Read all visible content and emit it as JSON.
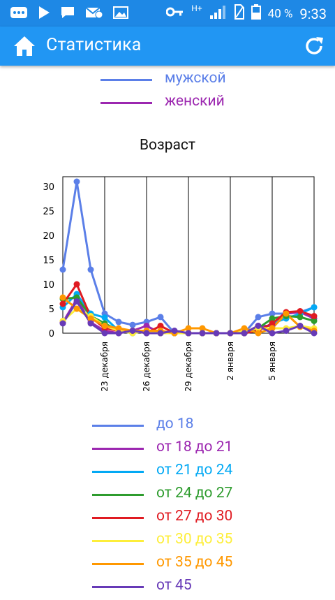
{
  "status_bar": {
    "battery": "40 %",
    "time": "9:33",
    "network": "H+"
  },
  "app_bar": {
    "title": "Статистика",
    "left_icon": "home-icon",
    "right_icon": "refresh-icon"
  },
  "gender_legend": [
    {
      "label": "мужской",
      "color": "#5b7fe8"
    },
    {
      "label": "женский",
      "color": "#9c27b0"
    }
  ],
  "chart_data": {
    "type": "line",
    "title": "Возраст",
    "xlabel": "",
    "ylabel": "",
    "ylim": [
      0,
      32
    ],
    "yticks": [
      0,
      5,
      10,
      15,
      20,
      25,
      30
    ],
    "x_tick_labels": [
      "23 декабря",
      "26 декабря",
      "29 декабря",
      "2 января",
      "5 января"
    ],
    "x_tick_positions": [
      3,
      6,
      9,
      12,
      15
    ],
    "x_count": 19,
    "grid": true,
    "legend_position": "bottom",
    "series": [
      {
        "name": "до 18",
        "color": "#5b7fe8",
        "values": [
          13,
          31,
          13,
          4,
          2.3,
          1.7,
          2.3,
          3.3,
          0,
          0,
          0,
          0,
          0,
          0,
          3.3,
          4,
          4,
          4.3,
          5.3
        ]
      },
      {
        "name": "от 18 до 21",
        "color": "#9c27b0",
        "values": [
          2.2,
          7,
          2.2,
          0.5,
          0,
          0.5,
          1.5,
          0,
          0,
          0,
          0,
          0,
          0,
          0,
          1.5,
          1.5,
          4,
          4.3,
          3
        ]
      },
      {
        "name": "от 21 до 24",
        "color": "#03a9f4",
        "values": [
          5.3,
          8,
          4,
          3.2,
          0.5,
          0.5,
          0,
          0,
          0,
          0,
          0,
          0,
          0,
          0,
          0.5,
          2,
          3,
          4,
          5.3
        ]
      },
      {
        "name": "от 24 до 27",
        "color": "#2e9c2e",
        "values": [
          7,
          7.3,
          3.5,
          2,
          0.5,
          0,
          0.5,
          0,
          0,
          0,
          0,
          0,
          0,
          0,
          1,
          3,
          3.5,
          3.3,
          2.5
        ]
      },
      {
        "name": "от 27 до 30",
        "color": "#e01b22",
        "values": [
          6,
          10,
          3.3,
          1,
          0.5,
          0.5,
          0,
          1.5,
          0,
          0,
          0,
          0,
          0,
          0,
          0.5,
          2,
          4.3,
          4.5,
          3.5
        ]
      },
      {
        "name": "от 30 до 35",
        "color": "#fdee3b",
        "values": [
          2.5,
          5,
          3.5,
          1.5,
          0.5,
          0,
          0.5,
          0,
          0,
          0,
          0,
          0,
          0,
          0.5,
          1,
          1,
          1,
          1.5,
          1
        ]
      },
      {
        "name": "от 35 до 45",
        "color": "#ff9800",
        "values": [
          7.3,
          5,
          3,
          1.5,
          1,
          0.5,
          0.5,
          0.5,
          0,
          1,
          1,
          0,
          0,
          1,
          0,
          1,
          4,
          1.3,
          0.5
        ]
      },
      {
        "name": "от 45",
        "color": "#673ab7",
        "values": [
          2,
          6.5,
          2,
          0,
          0,
          0.5,
          0,
          0,
          0.5,
          0,
          0,
          0,
          0,
          0,
          1.5,
          0,
          0.5,
          1.5,
          0
        ]
      }
    ]
  }
}
